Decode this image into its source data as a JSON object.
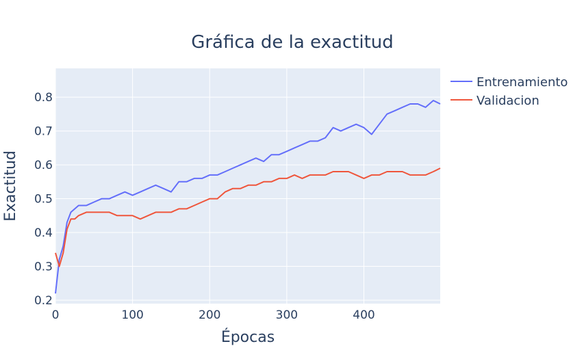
{
  "chart_data": {
    "type": "line",
    "title": "Gráfica de la exactitud",
    "xlabel": "Épocas",
    "ylabel": "Exactitud",
    "xlim": [
      0,
      499
    ],
    "ylim": [
      0.19,
      0.885
    ],
    "xticks": [
      0,
      100,
      200,
      300,
      400
    ],
    "xtick_labels": [
      "0",
      "100",
      "200",
      "300",
      "400"
    ],
    "yticks": [
      0.2,
      0.3,
      0.4,
      0.5,
      0.6,
      0.7,
      0.8
    ],
    "ytick_labels": [
      "0.2",
      "0.3",
      "0.4",
      "0.5",
      "0.6",
      "0.7",
      "0.8"
    ],
    "grid": true,
    "legend_position": "top-right-outside",
    "plot_background": "#e5ecf6",
    "series": [
      {
        "name": "Entrenamiento",
        "color": "#636efa",
        "x": [
          0,
          5,
          10,
          15,
          20,
          25,
          30,
          40,
          50,
          60,
          70,
          80,
          90,
          100,
          110,
          120,
          130,
          140,
          150,
          160,
          170,
          180,
          190,
          200,
          210,
          220,
          230,
          240,
          250,
          260,
          270,
          280,
          290,
          300,
          310,
          320,
          330,
          340,
          350,
          360,
          370,
          380,
          390,
          400,
          410,
          420,
          430,
          440,
          450,
          460,
          470,
          480,
          490,
          499
        ],
        "values": [
          0.22,
          0.32,
          0.36,
          0.43,
          0.46,
          0.47,
          0.48,
          0.48,
          0.49,
          0.5,
          0.5,
          0.51,
          0.52,
          0.51,
          0.52,
          0.53,
          0.54,
          0.53,
          0.52,
          0.55,
          0.55,
          0.56,
          0.56,
          0.57,
          0.57,
          0.58,
          0.59,
          0.6,
          0.61,
          0.62,
          0.61,
          0.63,
          0.63,
          0.64,
          0.65,
          0.66,
          0.67,
          0.67,
          0.68,
          0.71,
          0.7,
          0.71,
          0.72,
          0.71,
          0.69,
          0.72,
          0.75,
          0.76,
          0.77,
          0.78,
          0.78,
          0.77,
          0.79,
          0.78
        ]
      },
      {
        "name": "Validacion",
        "color": "#ef553b",
        "x": [
          0,
          5,
          10,
          15,
          20,
          25,
          30,
          40,
          50,
          60,
          70,
          80,
          90,
          100,
          110,
          120,
          130,
          140,
          150,
          160,
          170,
          180,
          190,
          200,
          210,
          220,
          230,
          240,
          250,
          260,
          270,
          280,
          290,
          300,
          310,
          320,
          330,
          340,
          350,
          360,
          370,
          380,
          390,
          400,
          410,
          420,
          430,
          440,
          450,
          460,
          470,
          480,
          490,
          499
        ],
        "values": [
          0.34,
          0.3,
          0.34,
          0.41,
          0.44,
          0.44,
          0.45,
          0.46,
          0.46,
          0.46,
          0.46,
          0.45,
          0.45,
          0.45,
          0.44,
          0.45,
          0.46,
          0.46,
          0.46,
          0.47,
          0.47,
          0.48,
          0.49,
          0.5,
          0.5,
          0.52,
          0.53,
          0.53,
          0.54,
          0.54,
          0.55,
          0.55,
          0.56,
          0.56,
          0.57,
          0.56,
          0.57,
          0.57,
          0.57,
          0.58,
          0.58,
          0.58,
          0.57,
          0.56,
          0.57,
          0.57,
          0.58,
          0.58,
          0.58,
          0.57,
          0.57,
          0.57,
          0.58,
          0.59
        ]
      }
    ]
  }
}
